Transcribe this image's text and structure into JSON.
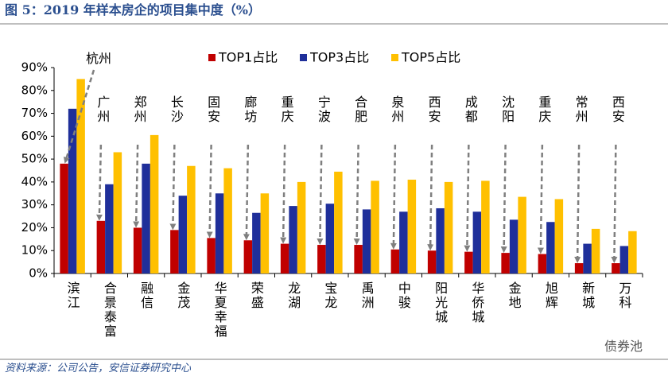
{
  "chart_data": {
    "type": "bar",
    "title": "图 5：2019 年样本房企的项目集中度（%）",
    "source": "资料来源：公司公告，安信证券研究中心",
    "watermark": "债券池",
    "categories": [
      "滨江",
      "合景泰富",
      "融信",
      "金茂",
      "华夏幸福",
      "荣盛",
      "龙湖",
      "宝龙",
      "禹洲",
      "中骏",
      "阳光城",
      "华侨城",
      "金地",
      "旭辉",
      "新城",
      "万科"
    ],
    "annotations": [
      "杭州",
      "广州",
      "郑州",
      "长沙",
      "固安",
      "廊坊",
      "重庆",
      "宁波",
      "合肥",
      "泉州",
      "西安",
      "成都",
      "沈阳",
      "重庆",
      "常州",
      "西安"
    ],
    "series": [
      {
        "name": "TOP1占比",
        "color": "#c00000",
        "values": [
          48,
          23,
          20,
          19,
          15.5,
          14.5,
          13,
          12.5,
          12.5,
          10.5,
          10,
          9.5,
          9,
          8.5,
          4.5,
          4.5
        ]
      },
      {
        "name": "TOP3占比",
        "color": "#1f2f9a",
        "values": [
          72,
          39,
          48,
          34,
          35,
          26.5,
          29.5,
          30.5,
          28,
          27,
          28.5,
          27,
          23.5,
          22.5,
          13,
          12
        ]
      },
      {
        "name": "TOP5占比",
        "color": "#ffc000",
        "values": [
          85,
          53,
          60.5,
          47,
          46,
          35,
          40,
          44.5,
          40.5,
          41,
          40,
          40.5,
          33.5,
          32.5,
          19.5,
          18.5
        ]
      }
    ],
    "ylim": [
      0,
      90
    ],
    "yticks": [
      {
        "value": 0,
        "label": "0%"
      },
      {
        "value": 10,
        "label": "10%"
      },
      {
        "value": 20,
        "label": "20%"
      },
      {
        "value": 30,
        "label": "30%"
      },
      {
        "value": 40,
        "label": "40%"
      },
      {
        "value": 50,
        "label": "50%"
      },
      {
        "value": 60,
        "label": "60%"
      },
      {
        "value": 70,
        "label": "70%"
      },
      {
        "value": 80,
        "label": "80%"
      },
      {
        "value": 90,
        "label": "90%"
      }
    ],
    "legend": "top"
  }
}
